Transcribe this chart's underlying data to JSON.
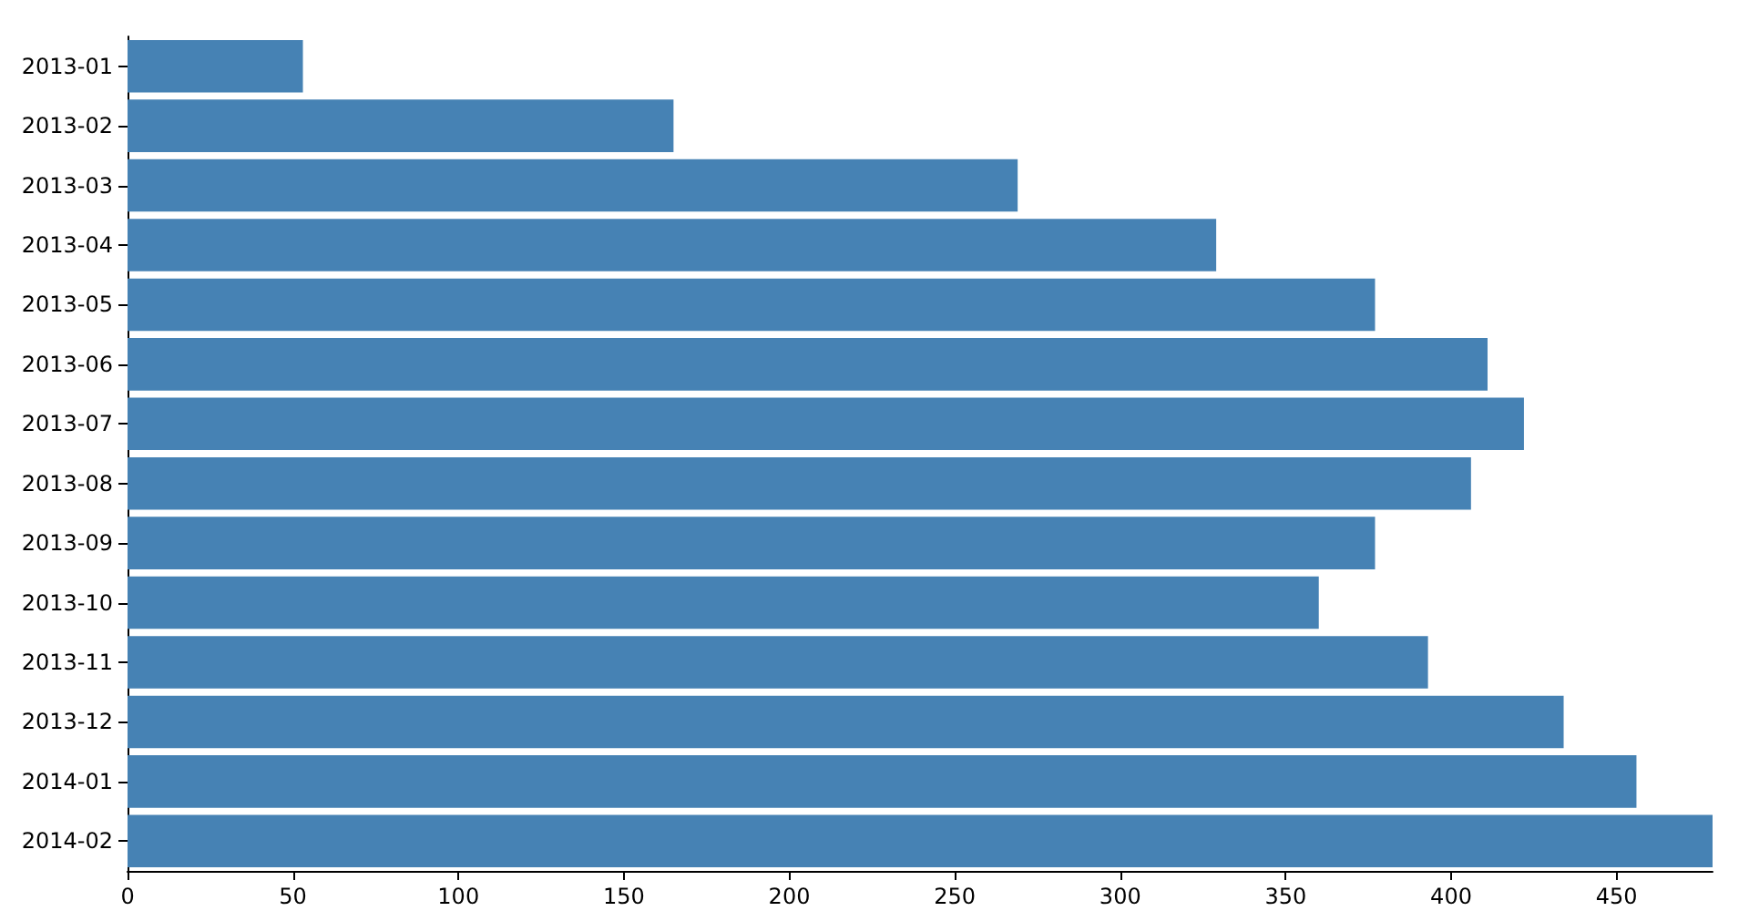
{
  "chart_data": {
    "type": "bar",
    "orientation": "horizontal",
    "categories": [
      "2013-01",
      "2013-02",
      "2013-03",
      "2013-04",
      "2013-05",
      "2013-06",
      "2013-07",
      "2013-08",
      "2013-09",
      "2013-10",
      "2013-11",
      "2013-12",
      "2014-01",
      "2014-02"
    ],
    "values": [
      53,
      165,
      269,
      329,
      377,
      411,
      422,
      406,
      377,
      360,
      393,
      434,
      456,
      479
    ],
    "color": "#4682b4",
    "xlim": [
      0,
      479
    ],
    "xticks": [
      0,
      50,
      100,
      150,
      200,
      250,
      300,
      350,
      400,
      450
    ]
  }
}
